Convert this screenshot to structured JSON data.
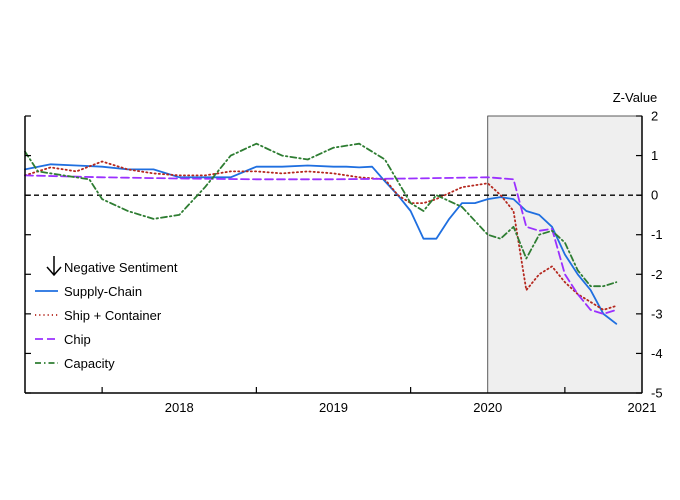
{
  "chart_data": {
    "type": "line",
    "ylabel": "Z-Value",
    "ylim": [
      -5,
      2
    ],
    "yticks": [
      "2",
      "1",
      "0",
      "-1",
      "-2",
      "-3",
      "-4",
      "-5"
    ],
    "xticks": [
      "2018",
      "2019",
      "2020",
      "2021"
    ],
    "xlim": [
      "2017-07",
      "2021-07"
    ],
    "shaded_region": {
      "start": "2020-07",
      "end": "2021-07"
    },
    "zero_line": true,
    "legend_placement": "bottom-left",
    "legend_heading": "Negative Sentiment",
    "series": [
      {
        "name": "Supply-Chain",
        "color": "#1f6fe0",
        "style": "solid",
        "points": [
          [
            "2017-07",
            0.65
          ],
          [
            "2017-09",
            0.78
          ],
          [
            "2017-11",
            0.75
          ],
          [
            "2018-01",
            0.72
          ],
          [
            "2018-03",
            0.65
          ],
          [
            "2018-05",
            0.65
          ],
          [
            "2018-07",
            0.45
          ],
          [
            "2018-09",
            0.45
          ],
          [
            "2018-11",
            0.45
          ],
          [
            "2019-01",
            0.72
          ],
          [
            "2019-03",
            0.72
          ],
          [
            "2019-05",
            0.75
          ],
          [
            "2019-07",
            0.72
          ],
          [
            "2019-08",
            0.72
          ],
          [
            "2019-09",
            0.7
          ],
          [
            "2019-10",
            0.72
          ],
          [
            "2019-11",
            0.35
          ],
          [
            "2019-12",
            0.0
          ],
          [
            "2020-01",
            -0.4
          ],
          [
            "2020-02",
            -1.1
          ],
          [
            "2020-03",
            -1.1
          ],
          [
            "2020-04",
            -0.6
          ],
          [
            "2020-05",
            -0.2
          ],
          [
            "2020-06",
            -0.2
          ],
          [
            "2020-07",
            -0.1
          ],
          [
            "2020-08",
            -0.05
          ],
          [
            "2020-09",
            -0.1
          ],
          [
            "2020-10",
            -0.4
          ],
          [
            "2020-11",
            -0.5
          ],
          [
            "2020-12",
            -0.8
          ],
          [
            "2021-01",
            -1.5
          ],
          [
            "2021-02",
            -2.0
          ],
          [
            "2021-03",
            -2.4
          ],
          [
            "2021-04",
            -3.0
          ],
          [
            "2021-05",
            -3.25
          ]
        ]
      },
      {
        "name": "Ship + Container",
        "color": "#b5281f",
        "style": "dotted",
        "points": [
          [
            "2017-07",
            0.5
          ],
          [
            "2017-09",
            0.7
          ],
          [
            "2017-11",
            0.6
          ],
          [
            "2018-01",
            0.85
          ],
          [
            "2018-03",
            0.65
          ],
          [
            "2018-05",
            0.55
          ],
          [
            "2018-07",
            0.5
          ],
          [
            "2018-09",
            0.5
          ],
          [
            "2018-11",
            0.6
          ],
          [
            "2019-01",
            0.6
          ],
          [
            "2019-03",
            0.55
          ],
          [
            "2019-05",
            0.6
          ],
          [
            "2019-07",
            0.55
          ],
          [
            "2019-09",
            0.45
          ],
          [
            "2019-11",
            0.4
          ],
          [
            "2019-12",
            0.0
          ],
          [
            "2020-01",
            -0.2
          ],
          [
            "2020-02",
            -0.2
          ],
          [
            "2020-03",
            -0.1
          ],
          [
            "2020-05",
            0.2
          ],
          [
            "2020-07",
            0.3
          ],
          [
            "2020-08",
            0.0
          ],
          [
            "2020-09",
            -0.4
          ],
          [
            "2020-10",
            -2.4
          ],
          [
            "2020-11",
            -2.0
          ],
          [
            "2020-12",
            -1.8
          ],
          [
            "2021-01",
            -2.2
          ],
          [
            "2021-02",
            -2.5
          ],
          [
            "2021-03",
            -2.7
          ],
          [
            "2021-04",
            -2.9
          ],
          [
            "2021-05",
            -2.8
          ]
        ]
      },
      {
        "name": "Chip",
        "color": "#9b30ff",
        "style": "dashed",
        "points": [
          [
            "2017-07",
            0.5
          ],
          [
            "2018-01",
            0.45
          ],
          [
            "2018-07",
            0.42
          ],
          [
            "2019-01",
            0.4
          ],
          [
            "2019-07",
            0.4
          ],
          [
            "2020-01",
            0.42
          ],
          [
            "2020-07",
            0.45
          ],
          [
            "2020-09",
            0.4
          ],
          [
            "2020-10",
            -0.8
          ],
          [
            "2020-11",
            -0.9
          ],
          [
            "2020-12",
            -0.85
          ],
          [
            "2021-01",
            -2.0
          ],
          [
            "2021-02",
            -2.5
          ],
          [
            "2021-03",
            -2.9
          ],
          [
            "2021-04",
            -3.0
          ],
          [
            "2021-05",
            -2.9
          ]
        ]
      },
      {
        "name": "Capacity",
        "color": "#2e7d32",
        "style": "dashdot",
        "points": [
          [
            "2017-07",
            1.1
          ],
          [
            "2017-08",
            0.6
          ],
          [
            "2017-10",
            0.5
          ],
          [
            "2017-12",
            0.4
          ],
          [
            "2018-01",
            -0.1
          ],
          [
            "2018-03",
            -0.4
          ],
          [
            "2018-05",
            -0.6
          ],
          [
            "2018-07",
            -0.5
          ],
          [
            "2018-09",
            0.2
          ],
          [
            "2018-11",
            1.0
          ],
          [
            "2019-01",
            1.3
          ],
          [
            "2019-03",
            1.0
          ],
          [
            "2019-05",
            0.9
          ],
          [
            "2019-07",
            1.2
          ],
          [
            "2019-09",
            1.3
          ],
          [
            "2019-11",
            0.9
          ],
          [
            "2020-01",
            -0.2
          ],
          [
            "2020-02",
            -0.4
          ],
          [
            "2020-03",
            0.0
          ],
          [
            "2020-05",
            -0.3
          ],
          [
            "2020-07",
            -1.0
          ],
          [
            "2020-08",
            -1.1
          ],
          [
            "2020-09",
            -0.8
          ],
          [
            "2020-10",
            -1.6
          ],
          [
            "2020-11",
            -1.0
          ],
          [
            "2020-12",
            -0.9
          ],
          [
            "2021-01",
            -1.2
          ],
          [
            "2021-02",
            -1.9
          ],
          [
            "2021-03",
            -2.3
          ],
          [
            "2021-04",
            -2.3
          ],
          [
            "2021-05",
            -2.2
          ]
        ]
      }
    ]
  }
}
